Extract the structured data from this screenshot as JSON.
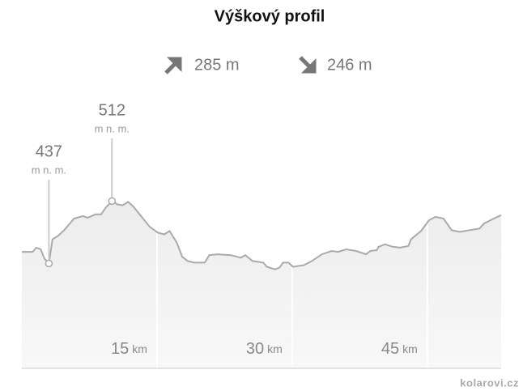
{
  "chart_data": {
    "type": "area",
    "title": "Výškový profil",
    "ascent": "285 m",
    "descent": "246 m",
    "x": [
      0.0,
      1.2,
      1.6,
      2.1,
      2.5,
      3.0,
      3.4,
      4.0,
      4.7,
      5.8,
      6.8,
      7.3,
      8.2,
      8.8,
      9.3,
      10.0,
      10.6,
      11.2,
      11.8,
      12.4,
      13.3,
      14.2,
      15.1,
      15.8,
      16.4,
      17.2,
      17.8,
      18.4,
      19.1,
      20.3,
      20.8,
      21.7,
      23.2,
      24.3,
      24.8,
      25.6,
      26.8,
      27.2,
      28.1,
      28.6,
      29.0,
      29.6,
      30.1,
      31.3,
      32.2,
      33.3,
      34.4,
      35.1,
      36.0,
      37.1,
      38.2,
      38.7,
      39.4,
      39.6,
      40.3,
      41.2,
      42.0,
      42.9,
      43.2,
      44.3,
      45.2,
      45.9,
      46.8,
      47.7,
      48.6,
      49.7,
      50.8,
      51.3,
      52.4,
      53.2
    ],
    "values": [
      451,
      451,
      456,
      454,
      443,
      437,
      466,
      470,
      477,
      491,
      494,
      492,
      496,
      496,
      504,
      512,
      508,
      507,
      511,
      505,
      493,
      481,
      474,
      472,
      476,
      462,
      445,
      440,
      438,
      438,
      447,
      448,
      447,
      444,
      447,
      440,
      438,
      433,
      430,
      432,
      438,
      438,
      433,
      435,
      440,
      448,
      452,
      451,
      454,
      452,
      448,
      452,
      453,
      457,
      460,
      457,
      456,
      458,
      466,
      476,
      489,
      493,
      491,
      477,
      475,
      477,
      479,
      485,
      491,
      495
    ],
    "color": "#aaaaaa",
    "xlim": [
      0,
      53.2
    ],
    "ylim": [
      311,
      560
    ],
    "xticks": [
      15,
      30,
      45
    ],
    "x_unit": "km",
    "annotations": [
      {
        "x": 3.0,
        "y": 437,
        "unit": "m n. m."
      },
      {
        "x": 10.0,
        "y": 512,
        "unit": "m n. m."
      }
    ],
    "source": "kolarovi.cz"
  }
}
